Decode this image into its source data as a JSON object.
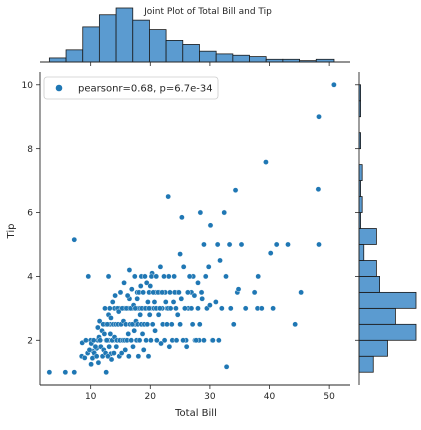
{
  "title": "Joint Plot of Total Bill and Tip",
  "colors": {
    "points": "#1f77b4",
    "bars": "#5b9bd0",
    "edges": "#1a1a1a",
    "axes": "#262626"
  },
  "chart_data": {
    "type": "scatter",
    "title": "Joint Plot of Total Bill and Tip",
    "xlabel": "Total Bill",
    "ylabel": "Tip",
    "xlim": [
      1.5,
      53.5
    ],
    "ylim": [
      0.6,
      10.4
    ],
    "xticks": [
      10,
      20,
      30,
      40,
      50
    ],
    "yticks": [
      2,
      4,
      6,
      8,
      10
    ],
    "grid": false,
    "legend": {
      "label": "pearsonr=0.68, p=6.7e-34",
      "placement": "top-left"
    },
    "points": [
      [
        3.07,
        1.0
      ],
      [
        5.75,
        1.0
      ],
      [
        7.25,
        1.0
      ],
      [
        7.25,
        5.15
      ],
      [
        8.5,
        1.5
      ],
      [
        8.58,
        1.92
      ],
      [
        9.6,
        4.0
      ],
      [
        10.07,
        1.25
      ],
      [
        10.34,
        1.66
      ],
      [
        10.65,
        1.5
      ],
      [
        11.0,
        1.75
      ],
      [
        11.5,
        2.6
      ],
      [
        11.2,
        2.0
      ],
      [
        12.6,
        1.0
      ],
      [
        12.5,
        2.5
      ],
      [
        12.6,
        2.0
      ],
      [
        13.0,
        2.0
      ],
      [
        13.4,
        1.58
      ],
      [
        13.0,
        4.0
      ],
      [
        13.3,
        2.5
      ],
      [
        13.8,
        2.0
      ],
      [
        14.0,
        3.0
      ],
      [
        14.5,
        2.0
      ],
      [
        14.8,
        3.0
      ],
      [
        15.0,
        2.0
      ],
      [
        15.5,
        3.0
      ],
      [
        15.7,
        3.0
      ],
      [
        16.0,
        2.0
      ],
      [
        16.3,
        3.0
      ],
      [
        16.5,
        3.3
      ],
      [
        17.0,
        3.0
      ],
      [
        17.5,
        2.5
      ],
      [
        17.8,
        3.5
      ],
      [
        18.0,
        3.0
      ],
      [
        18.3,
        3.0
      ],
      [
        18.5,
        4.0
      ],
      [
        18.7,
        2.5
      ],
      [
        19.0,
        3.0
      ],
      [
        19.5,
        3.0
      ],
      [
        19.8,
        3.5
      ],
      [
        20.0,
        3.0
      ],
      [
        20.3,
        4.1
      ],
      [
        20.6,
        3.0
      ],
      [
        20.9,
        3.5
      ],
      [
        21.0,
        3.0
      ],
      [
        21.5,
        3.5
      ],
      [
        21.7,
        4.3
      ],
      [
        22.0,
        3.0
      ],
      [
        22.5,
        3.5
      ],
      [
        22.8,
        3.0
      ],
      [
        23.0,
        6.5
      ],
      [
        23.1,
        4.0
      ],
      [
        23.3,
        3.5
      ],
      [
        23.7,
        2.0
      ],
      [
        24.0,
        4.0
      ],
      [
        24.3,
        3.0
      ],
      [
        24.6,
        3.5
      ],
      [
        25.0,
        4.7
      ],
      [
        25.3,
        5.85
      ],
      [
        25.6,
        4.3
      ],
      [
        26.0,
        2.0
      ],
      [
        26.4,
        3.0
      ],
      [
        26.9,
        3.5
      ],
      [
        27.2,
        4.0
      ],
      [
        27.5,
        2.0
      ],
      [
        28.0,
        3.0
      ],
      [
        28.2,
        2.0
      ],
      [
        28.4,
        6.0
      ],
      [
        28.6,
        3.5
      ],
      [
        29.0,
        5.0
      ],
      [
        29.3,
        4.0
      ],
      [
        29.8,
        4.3
      ],
      [
        30.1,
        5.6
      ],
      [
        30.4,
        2.0
      ],
      [
        31.3,
        5.0
      ],
      [
        31.7,
        4.5
      ],
      [
        32.4,
        6.0
      ],
      [
        32.8,
        1.17
      ],
      [
        33.3,
        5.0
      ],
      [
        34.3,
        6.7
      ],
      [
        34.6,
        3.5
      ],
      [
        34.8,
        3.6
      ],
      [
        35.3,
        5.0
      ],
      [
        38.0,
        3.0
      ],
      [
        38.1,
        4.0
      ],
      [
        38.7,
        3.0
      ],
      [
        39.4,
        7.58
      ],
      [
        40.2,
        4.73
      ],
      [
        40.6,
        3.0
      ],
      [
        41.2,
        5.0
      ],
      [
        43.1,
        5.0
      ],
      [
        44.3,
        2.5
      ],
      [
        45.3,
        3.5
      ],
      [
        48.2,
        6.73
      ],
      [
        48.3,
        9.0
      ],
      [
        48.3,
        5.0
      ],
      [
        50.8,
        10.0
      ],
      [
        9.0,
        1.45
      ],
      [
        9.2,
        2.0
      ],
      [
        9.5,
        1.6
      ],
      [
        9.8,
        1.7
      ],
      [
        10.0,
        2.0
      ],
      [
        10.1,
        1.9
      ],
      [
        10.3,
        1.44
      ],
      [
        10.5,
        2.0
      ],
      [
        10.6,
        1.6
      ],
      [
        10.8,
        1.8
      ],
      [
        11.0,
        1.5
      ],
      [
        11.2,
        2.4
      ],
      [
        11.3,
        1.3
      ],
      [
        11.4,
        2.1
      ],
      [
        11.6,
        2.0
      ],
      [
        11.7,
        1.8
      ],
      [
        11.9,
        2.3
      ],
      [
        12.0,
        1.5
      ],
      [
        12.1,
        2.5
      ],
      [
        12.2,
        1.7
      ],
      [
        12.3,
        2.2
      ],
      [
        12.4,
        3.0
      ],
      [
        12.5,
        1.6
      ],
      [
        12.7,
        2.0
      ],
      [
        12.8,
        2.5
      ],
      [
        12.9,
        1.5
      ],
      [
        13.0,
        2.8
      ],
      [
        13.1,
        1.8
      ],
      [
        13.2,
        3.0
      ],
      [
        13.3,
        2.2
      ],
      [
        13.4,
        2.7
      ],
      [
        13.5,
        1.4
      ],
      [
        13.6,
        2.0
      ],
      [
        13.7,
        3.2
      ],
      [
        13.8,
        2.5
      ],
      [
        13.9,
        1.6
      ],
      [
        14.0,
        2.1
      ],
      [
        14.1,
        3.4
      ],
      [
        14.2,
        2.5
      ],
      [
        14.3,
        1.8
      ],
      [
        14.4,
        2.0
      ],
      [
        14.5,
        3.0
      ],
      [
        14.6,
        2.5
      ],
      [
        14.7,
        2.9
      ],
      [
        14.8,
        1.5
      ],
      [
        14.9,
        2.0
      ],
      [
        15.0,
        3.5
      ],
      [
        15.1,
        2.5
      ],
      [
        15.2,
        1.6
      ],
      [
        15.3,
        3.0
      ],
      [
        15.4,
        2.0
      ],
      [
        15.5,
        2.6
      ],
      [
        15.6,
        3.8
      ],
      [
        15.7,
        2.0
      ],
      [
        15.8,
        1.7
      ],
      [
        15.9,
        2.5
      ],
      [
        16.0,
        3.0
      ],
      [
        16.1,
        2.0
      ],
      [
        16.2,
        3.4
      ],
      [
        16.3,
        2.2
      ],
      [
        16.4,
        1.5
      ],
      [
        16.5,
        4.2
      ],
      [
        16.6,
        2.5
      ],
      [
        16.7,
        3.0
      ],
      [
        16.8,
        2.0
      ],
      [
        16.9,
        3.6
      ],
      [
        17.0,
        2.5
      ],
      [
        17.1,
        1.8
      ],
      [
        17.2,
        3.1
      ],
      [
        17.3,
        2.3
      ],
      [
        17.4,
        4.0
      ],
      [
        17.5,
        3.0
      ],
      [
        17.6,
        2.6
      ],
      [
        17.7,
        2.0
      ],
      [
        17.8,
        3.3
      ],
      [
        17.9,
        2.5
      ],
      [
        18.0,
        1.5
      ],
      [
        18.1,
        3.5
      ],
      [
        18.2,
        2.0
      ],
      [
        18.3,
        2.8
      ],
      [
        18.4,
        3.7
      ],
      [
        18.5,
        2.5
      ],
      [
        18.6,
        3.0
      ],
      [
        18.7,
        2.2
      ],
      [
        18.8,
        3.5
      ],
      [
        18.9,
        1.7
      ],
      [
        19.0,
        2.5
      ],
      [
        19.1,
        4.0
      ],
      [
        19.2,
        3.0
      ],
      [
        19.3,
        2.0
      ],
      [
        19.4,
        3.8
      ],
      [
        19.5,
        2.5
      ],
      [
        19.6,
        3.2
      ],
      [
        19.7,
        1.5
      ],
      [
        19.8,
        3.0
      ],
      [
        19.9,
        2.8
      ],
      [
        20.0,
        3.7
      ],
      [
        20.1,
        2.0
      ],
      [
        20.2,
        4.0
      ],
      [
        20.4,
        2.5
      ],
      [
        20.5,
        3.5
      ],
      [
        20.7,
        3.2
      ],
      [
        20.8,
        2.3
      ],
      [
        21.0,
        4.0
      ],
      [
        21.1,
        2.0
      ],
      [
        21.3,
        3.5
      ],
      [
        21.4,
        2.8
      ],
      [
        21.6,
        3.0
      ],
      [
        21.8,
        1.9
      ],
      [
        22.0,
        3.5
      ],
      [
        22.1,
        2.5
      ],
      [
        22.3,
        4.0
      ],
      [
        22.4,
        2.0
      ],
      [
        22.6,
        3.2
      ],
      [
        22.8,
        2.5
      ],
      [
        23.0,
        3.0
      ],
      [
        23.2,
        1.8
      ],
      [
        23.4,
        3.0
      ],
      [
        23.6,
        2.5
      ],
      [
        23.9,
        3.2
      ],
      [
        24.1,
        3.5
      ],
      [
        24.4,
        2.0
      ],
      [
        24.6,
        2.8
      ],
      [
        24.8,
        3.5
      ],
      [
        25.0,
        2.5
      ],
      [
        25.2,
        3.3
      ],
      [
        25.5,
        2.0
      ],
      [
        25.8,
        3.0
      ],
      [
        26.1,
        1.8
      ],
      [
        26.3,
        3.5
      ],
      [
        26.6,
        4.0
      ],
      [
        26.9,
        3.0
      ],
      [
        27.1,
        2.5
      ],
      [
        27.4,
        3.4
      ],
      [
        27.7,
        2.0
      ],
      [
        28.0,
        3.8
      ],
      [
        28.3,
        2.5
      ],
      [
        28.7,
        3.3
      ],
      [
        29.0,
        2.0
      ],
      [
        29.5,
        3.0
      ],
      [
        30.0,
        3.1
      ],
      [
        30.5,
        2.0
      ],
      [
        31.0,
        3.2
      ],
      [
        31.5,
        2.0
      ],
      [
        32.0,
        3.0
      ],
      [
        32.7,
        4.0
      ],
      [
        33.5,
        3.0
      ],
      [
        34.0,
        2.5
      ],
      [
        36.0,
        3.0
      ],
      [
        37.5,
        3.5
      ]
    ],
    "top_hist": {
      "bin_edges": [
        3.07,
        5.87,
        8.67,
        11.46,
        14.26,
        17.06,
        19.86,
        22.65,
        25.45,
        28.25,
        31.05,
        33.85,
        36.64,
        39.44,
        42.24,
        45.04,
        47.84,
        50.81
      ],
      "counts": [
        3,
        9,
        26,
        35,
        40,
        31,
        24,
        16,
        13,
        8,
        6,
        5,
        4,
        2,
        2,
        1,
        2
      ]
    },
    "right_hist": {
      "bin_edges": [
        1.0,
        1.5,
        2.0,
        2.5,
        3.0,
        3.5,
        4.0,
        4.5,
        5.0,
        5.5,
        6.0,
        6.5,
        7.0,
        7.5,
        8.0,
        8.5,
        9.0,
        9.5,
        10.0
      ],
      "counts": [
        9,
        18,
        36,
        23,
        36,
        13,
        11,
        3,
        11,
        1,
        2,
        1,
        2,
        0,
        1,
        0,
        1,
        1
      ]
    }
  }
}
